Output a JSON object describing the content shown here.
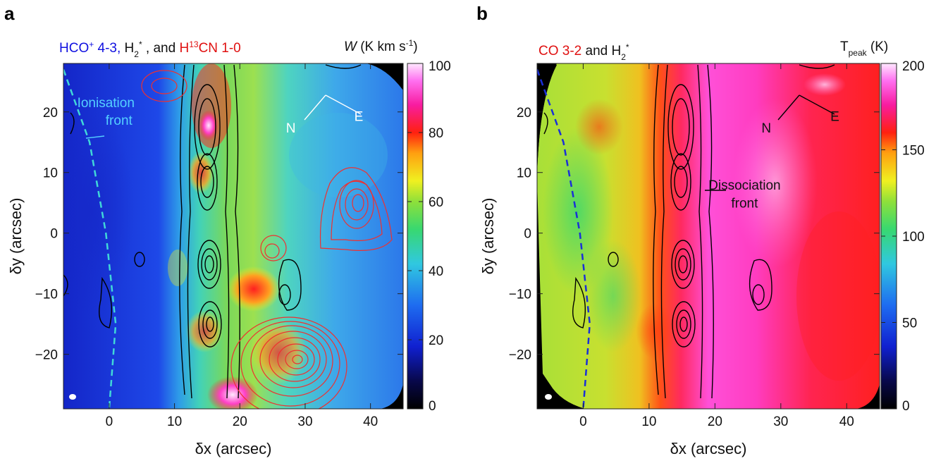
{
  "chart_data": [
    {
      "type": "heatmap",
      "panel_letter": "a",
      "title_parts": [
        {
          "text": "HCO",
          "color": "#1010e0"
        },
        {
          "text": "+",
          "color": "#1010e0",
          "sup": true
        },
        {
          "text": " 4-3,",
          "color": "#1010e0"
        },
        {
          "text": " H",
          "color": "#111111"
        },
        {
          "text": "2",
          "color": "#111111",
          "sub": true
        },
        {
          "text": "*",
          "color": "#111111",
          "sup": true
        },
        {
          "text": " , and ",
          "color": "#111111"
        },
        {
          "text": "H",
          "color": "#e01010"
        },
        {
          "text": "13",
          "color": "#e01010",
          "sup": true
        },
        {
          "text": "CN 1-0",
          "color": "#e01010"
        }
      ],
      "colorbar_title_parts": [
        {
          "text": "W",
          "italic": true
        },
        {
          "text": " (K km  s"
        },
        {
          "text": "-1",
          "sup": true
        },
        {
          "text": ")"
        }
      ],
      "xlabel": "δx (arcsec)",
      "ylabel": "δy (arcsec)",
      "xlim": [
        -7,
        45
      ],
      "ylim": [
        -29,
        28
      ],
      "xticks": [
        0,
        10,
        20,
        30,
        40
      ],
      "yticks": [
        -20,
        -10,
        0,
        10,
        20
      ],
      "colorbar": {
        "min": 0,
        "max": 100,
        "ticks": [
          0,
          20,
          40,
          60,
          80,
          100
        ],
        "colormap": "rainbow"
      },
      "dashed_front": {
        "color": "#40d8d8",
        "points": [
          [
            -7,
            27
          ],
          [
            -3,
            15
          ],
          [
            -0.5,
            0
          ],
          [
            1,
            -15
          ],
          [
            0,
            -29
          ]
        ]
      },
      "annotations": [
        {
          "text": "Ionisation",
          "color": "#54d0ff",
          "x": -0.5,
          "y": 20.8
        },
        {
          "text": "front",
          "color": "#54d0ff",
          "x": 1.5,
          "y": 17.9
        },
        {
          "text": "N",
          "color": "#ffffff",
          "x": 27.8,
          "y": 16.6
        },
        {
          "text": "E",
          "color": "#ffffff",
          "x": 38.2,
          "y": 18.5
        }
      ]
    },
    {
      "type": "heatmap",
      "panel_letter": "b",
      "title_parts": [
        {
          "text": "CO 3-2",
          "color": "#e01010"
        },
        {
          "text": "  and H",
          "color": "#111111"
        },
        {
          "text": "2",
          "color": "#111111",
          "sub": true
        },
        {
          "text": "*",
          "color": "#111111",
          "sup": true
        }
      ],
      "colorbar_title_parts": [
        {
          "text": "T"
        },
        {
          "text": "peak",
          "sub": true
        },
        {
          "text": " (K)"
        }
      ],
      "xlabel": "δx (arcsec)",
      "ylabel": "δy (arcsec)",
      "xlim": [
        -7,
        45
      ],
      "ylim": [
        -29,
        28
      ],
      "xticks": [
        0,
        10,
        20,
        30,
        40
      ],
      "yticks": [
        -20,
        -10,
        0,
        10,
        20
      ],
      "colorbar": {
        "min": 0,
        "max": 200,
        "ticks": [
          0,
          50,
          100,
          150,
          200
        ],
        "colormap": "rainbow"
      },
      "dashed_front": {
        "color": "#1a2fd8",
        "points": [
          [
            -7,
            27
          ],
          [
            -3,
            15
          ],
          [
            -0.5,
            0
          ],
          [
            1,
            -15
          ],
          [
            0,
            -29
          ]
        ]
      },
      "annotations": [
        {
          "text": "Dissociation",
          "color": "#111111",
          "x": 24.5,
          "y": 7.2
        },
        {
          "text": "front",
          "color": "#111111",
          "x": 24.5,
          "y": 4.2
        },
        {
          "text": "N",
          "color": "#111111",
          "x": 27.8,
          "y": 16.6
        },
        {
          "text": "E",
          "color": "#111111",
          "x": 38.2,
          "y": 18.5
        }
      ]
    }
  ]
}
